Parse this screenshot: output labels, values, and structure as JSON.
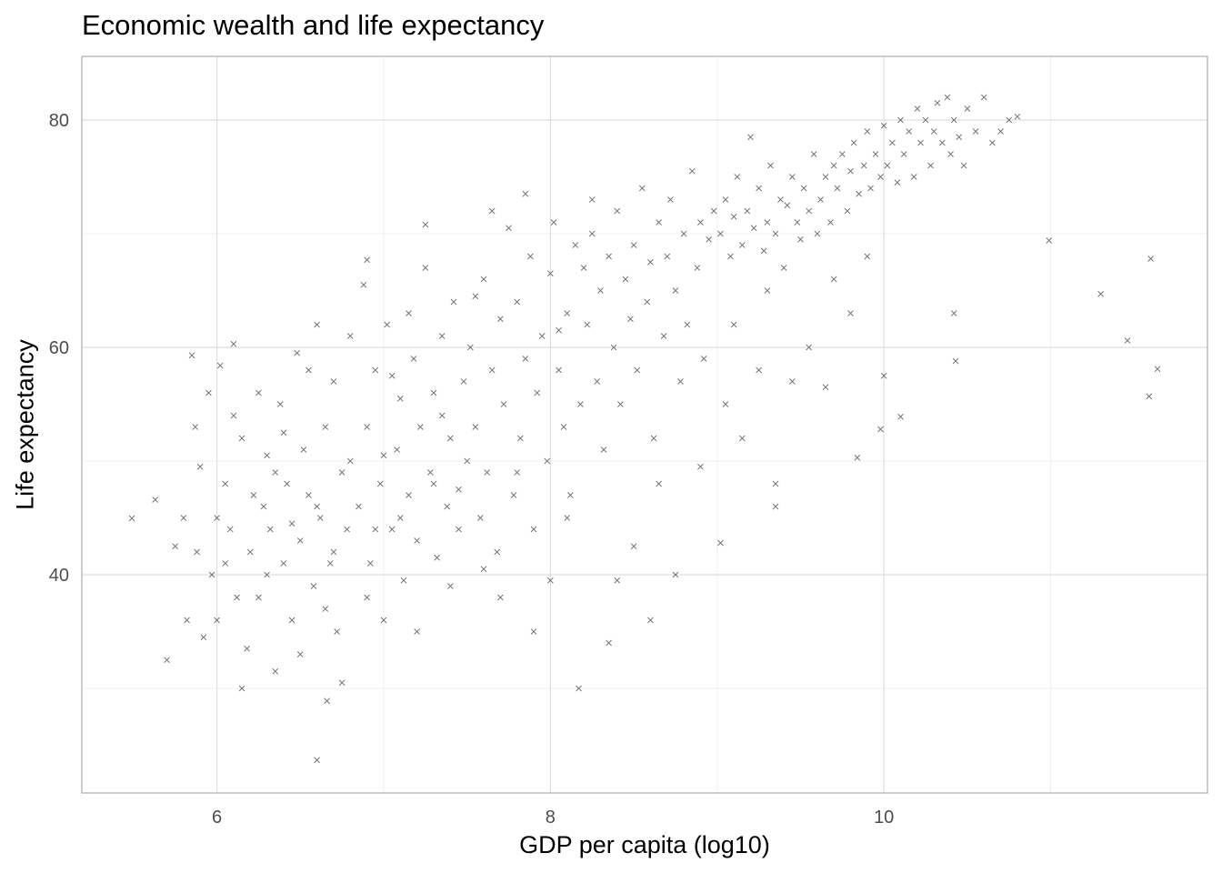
{
  "chart_data": {
    "type": "scatter",
    "title": "Economic wealth and life expectancy",
    "xlabel": "GDP per capita (log10)",
    "ylabel": "Life expectancy",
    "xlim": [
      5.19,
      11.94
    ],
    "ylim": [
      20.8,
      85.6
    ],
    "x_ticks": [
      6,
      8,
      10
    ],
    "y_ticks": [
      40,
      60,
      80
    ],
    "x_minor": [
      7,
      9,
      11
    ],
    "y_minor": [
      30,
      50,
      70
    ],
    "grid": true,
    "marker": "x",
    "marker_color": "#333333",
    "points": [
      [
        5.49,
        44.96
      ],
      [
        5.63,
        46.6
      ],
      [
        5.7,
        32.5
      ],
      [
        5.75,
        42.5
      ],
      [
        5.8,
        45
      ],
      [
        5.82,
        36
      ],
      [
        5.85,
        59.3
      ],
      [
        5.87,
        53
      ],
      [
        5.88,
        42
      ],
      [
        5.9,
        49.5
      ],
      [
        5.92,
        34.5
      ],
      [
        5.95,
        56
      ],
      [
        5.97,
        40
      ],
      [
        6.0,
        45
      ],
      [
        6.0,
        36
      ],
      [
        6.02,
        58.4
      ],
      [
        6.05,
        48
      ],
      [
        6.05,
        41
      ],
      [
        6.08,
        44
      ],
      [
        6.1,
        60.3
      ],
      [
        6.1,
        54
      ],
      [
        6.12,
        38
      ],
      [
        6.15,
        52
      ],
      [
        6.15,
        30
      ],
      [
        6.18,
        33.5
      ],
      [
        6.2,
        42
      ],
      [
        6.22,
        47
      ],
      [
        6.25,
        38
      ],
      [
        6.25,
        56
      ],
      [
        6.28,
        46
      ],
      [
        6.3,
        50.5
      ],
      [
        6.3,
        40
      ],
      [
        6.32,
        44
      ],
      [
        6.35,
        31.5
      ],
      [
        6.35,
        49
      ],
      [
        6.38,
        55
      ],
      [
        6.4,
        41
      ],
      [
        6.4,
        52.5
      ],
      [
        6.42,
        48
      ],
      [
        6.45,
        36
      ],
      [
        6.45,
        44.5
      ],
      [
        6.48,
        59.5
      ],
      [
        6.5,
        43
      ],
      [
        6.5,
        33
      ],
      [
        6.52,
        51
      ],
      [
        6.55,
        47
      ],
      [
        6.55,
        58
      ],
      [
        6.58,
        39
      ],
      [
        6.6,
        62
      ],
      [
        6.6,
        46
      ],
      [
        6.6,
        23.7
      ],
      [
        6.62,
        45
      ],
      [
        6.65,
        53
      ],
      [
        6.65,
        37
      ],
      [
        6.66,
        28.9
      ],
      [
        6.68,
        41
      ],
      [
        6.7,
        57
      ],
      [
        6.7,
        42
      ],
      [
        6.72,
        35
      ],
      [
        6.75,
        49
      ],
      [
        6.75,
        30.5
      ],
      [
        6.78,
        44
      ],
      [
        6.8,
        61
      ],
      [
        6.8,
        50
      ],
      [
        6.85,
        46
      ],
      [
        6.88,
        65.5
      ],
      [
        6.9,
        53
      ],
      [
        6.9,
        38
      ],
      [
        6.9,
        67.7
      ],
      [
        6.92,
        41
      ],
      [
        6.95,
        58
      ],
      [
        6.95,
        44
      ],
      [
        6.98,
        48
      ],
      [
        7.0,
        36
      ],
      [
        7.0,
        50.5
      ],
      [
        7.02,
        62
      ],
      [
        7.05,
        44
      ],
      [
        7.05,
        57.5
      ],
      [
        7.08,
        51
      ],
      [
        7.1,
        55.5
      ],
      [
        7.1,
        45
      ],
      [
        7.12,
        39.5
      ],
      [
        7.15,
        47
      ],
      [
        7.15,
        63
      ],
      [
        7.18,
        59
      ],
      [
        7.2,
        43
      ],
      [
        7.2,
        35
      ],
      [
        7.22,
        53
      ],
      [
        7.25,
        67
      ],
      [
        7.25,
        70.8
      ],
      [
        7.28,
        49
      ],
      [
        7.3,
        56
      ],
      [
        7.3,
        48
      ],
      [
        7.32,
        41.5
      ],
      [
        7.35,
        61
      ],
      [
        7.35,
        54
      ],
      [
        7.38,
        46
      ],
      [
        7.4,
        52
      ],
      [
        7.4,
        39
      ],
      [
        7.42,
        64
      ],
      [
        7.45,
        44
      ],
      [
        7.45,
        47.5
      ],
      [
        7.48,
        57
      ],
      [
        7.5,
        50
      ],
      [
        7.52,
        60
      ],
      [
        7.55,
        53
      ],
      [
        7.55,
        64.5
      ],
      [
        7.58,
        45
      ],
      [
        7.6,
        66
      ],
      [
        7.6,
        40.5
      ],
      [
        7.62,
        49
      ],
      [
        7.65,
        58
      ],
      [
        7.65,
        72
      ],
      [
        7.68,
        42
      ],
      [
        7.7,
        62.5
      ],
      [
        7.7,
        38
      ],
      [
        7.72,
        55
      ],
      [
        7.75,
        70.5
      ],
      [
        7.78,
        47
      ],
      [
        7.8,
        64
      ],
      [
        7.8,
        49
      ],
      [
        7.82,
        52
      ],
      [
        7.85,
        59
      ],
      [
        7.85,
        73.5
      ],
      [
        7.88,
        68
      ],
      [
        7.9,
        44
      ],
      [
        7.9,
        35
      ],
      [
        7.92,
        56
      ],
      [
        7.95,
        61
      ],
      [
        7.98,
        50
      ],
      [
        8.0,
        66.5
      ],
      [
        8.0,
        39.5
      ],
      [
        8.02,
        71
      ],
      [
        8.05,
        58
      ],
      [
        8.05,
        61.5
      ],
      [
        8.08,
        53
      ],
      [
        8.1,
        63
      ],
      [
        8.1,
        45
      ],
      [
        8.12,
        47
      ],
      [
        8.15,
        69
      ],
      [
        8.17,
        30
      ],
      [
        8.18,
        55
      ],
      [
        8.2,
        67
      ],
      [
        8.22,
        62
      ],
      [
        8.25,
        70
      ],
      [
        8.25,
        73
      ],
      [
        8.28,
        57
      ],
      [
        8.3,
        65
      ],
      [
        8.32,
        51
      ],
      [
        8.35,
        68
      ],
      [
        8.35,
        34
      ],
      [
        8.38,
        60
      ],
      [
        8.4,
        72
      ],
      [
        8.4,
        39.5
      ],
      [
        8.42,
        55
      ],
      [
        8.45,
        66
      ],
      [
        8.48,
        62.5
      ],
      [
        8.5,
        69
      ],
      [
        8.5,
        42.5
      ],
      [
        8.52,
        58
      ],
      [
        8.55,
        74
      ],
      [
        8.58,
        64
      ],
      [
        8.6,
        67.5
      ],
      [
        8.6,
        36
      ],
      [
        8.62,
        52
      ],
      [
        8.65,
        71
      ],
      [
        8.65,
        48
      ],
      [
        8.68,
        61
      ],
      [
        8.7,
        68
      ],
      [
        8.72,
        73
      ],
      [
        8.75,
        65
      ],
      [
        8.75,
        40
      ],
      [
        8.78,
        57
      ],
      [
        8.8,
        70
      ],
      [
        8.82,
        62
      ],
      [
        8.85,
        75.5
      ],
      [
        8.88,
        67
      ],
      [
        8.9,
        71
      ],
      [
        8.9,
        49.5
      ],
      [
        8.92,
        59
      ],
      [
        8.95,
        69.5
      ],
      [
        8.98,
        72
      ],
      [
        9.02,
        70
      ],
      [
        9.02,
        42.8
      ],
      [
        9.05,
        73
      ],
      [
        9.05,
        55
      ],
      [
        9.08,
        68
      ],
      [
        9.1,
        71.5
      ],
      [
        9.1,
        62
      ],
      [
        9.12,
        75
      ],
      [
        9.15,
        69
      ],
      [
        9.15,
        52
      ],
      [
        9.18,
        72
      ],
      [
        9.2,
        78.5
      ],
      [
        9.22,
        70.5
      ],
      [
        9.25,
        74
      ],
      [
        9.25,
        58
      ],
      [
        9.28,
        68.5
      ],
      [
        9.3,
        71
      ],
      [
        9.3,
        65
      ],
      [
        9.32,
        76
      ],
      [
        9.35,
        70
      ],
      [
        9.35,
        48
      ],
      [
        9.35,
        46
      ],
      [
        9.38,
        73
      ],
      [
        9.4,
        67
      ],
      [
        9.42,
        72.5
      ],
      [
        9.45,
        75
      ],
      [
        9.45,
        57
      ],
      [
        9.48,
        71
      ],
      [
        9.5,
        69.5
      ],
      [
        9.52,
        74
      ],
      [
        9.55,
        72
      ],
      [
        9.55,
        60
      ],
      [
        9.58,
        77
      ],
      [
        9.6,
        70
      ],
      [
        9.62,
        73
      ],
      [
        9.65,
        75
      ],
      [
        9.65,
        56.5
      ],
      [
        9.68,
        71
      ],
      [
        9.7,
        76
      ],
      [
        9.7,
        66
      ],
      [
        9.72,
        74
      ],
      [
        9.75,
        77
      ],
      [
        9.78,
        72
      ],
      [
        9.8,
        75.5
      ],
      [
        9.8,
        63
      ],
      [
        9.82,
        78
      ],
      [
        9.84,
        50.3
      ],
      [
        9.85,
        73.5
      ],
      [
        9.88,
        76
      ],
      [
        9.9,
        79
      ],
      [
        9.9,
        68
      ],
      [
        9.92,
        74
      ],
      [
        9.95,
        77
      ],
      [
        9.98,
        75
      ],
      [
        9.98,
        52.8
      ],
      [
        10.0,
        79.5
      ],
      [
        10.0,
        57.5
      ],
      [
        10.02,
        76
      ],
      [
        10.05,
        78
      ],
      [
        10.08,
        74.5
      ],
      [
        10.1,
        80
      ],
      [
        10.1,
        53.9
      ],
      [
        10.12,
        77
      ],
      [
        10.15,
        79
      ],
      [
        10.18,
        75
      ],
      [
        10.2,
        81
      ],
      [
        10.22,
        78
      ],
      [
        10.25,
        80
      ],
      [
        10.28,
        76
      ],
      [
        10.3,
        79
      ],
      [
        10.32,
        81.5
      ],
      [
        10.35,
        78
      ],
      [
        10.38,
        82
      ],
      [
        10.4,
        77
      ],
      [
        10.42,
        80
      ],
      [
        10.42,
        63
      ],
      [
        10.43,
        58.8
      ],
      [
        10.45,
        78.5
      ],
      [
        10.48,
        76
      ],
      [
        10.5,
        81
      ],
      [
        10.55,
        79
      ],
      [
        10.6,
        82
      ],
      [
        10.65,
        78
      ],
      [
        10.7,
        79
      ],
      [
        10.75,
        80
      ],
      [
        10.8,
        80.3
      ],
      [
        10.99,
        69.4
      ],
      [
        11.3,
        64.7
      ],
      [
        11.46,
        60.6
      ],
      [
        11.6,
        67.8
      ],
      [
        11.64,
        58.1
      ],
      [
        11.59,
        55.7
      ]
    ]
  }
}
